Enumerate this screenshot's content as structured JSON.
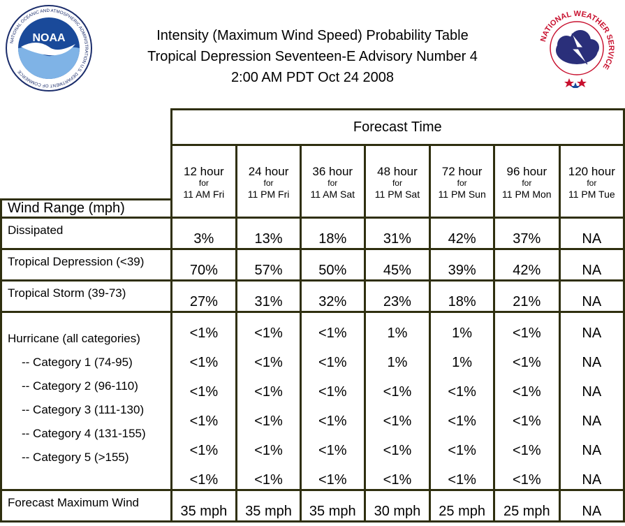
{
  "header": {
    "title_line1": "Intensity (Maximum Wind Speed) Probability Table",
    "title_line2": "Tropical Depression Seventeen-E Advisory Number 4",
    "title_line3": "2:00 AM PDT Oct 24 2008",
    "noaa_logo_text": "NOAA",
    "noaa_ring_text": "NATIONAL OCEANIC AND ATMOSPHERIC ADMINISTRATION U.S. DEPARTMENT OF COMMERCE",
    "nws_ring_text": "NATIONAL WEATHER SERVICE"
  },
  "table": {
    "forecast_time_label": "Forecast Time",
    "wind_range_label": "Wind Range (mph)",
    "columns": [
      {
        "hour": "12 hour",
        "for": "for",
        "when": "11 AM Fri"
      },
      {
        "hour": "24 hour",
        "for": "for",
        "when": "11 PM Fri"
      },
      {
        "hour": "36 hour",
        "for": "for",
        "when": "11 AM Sat"
      },
      {
        "hour": "48 hour",
        "for": "for",
        "when": "11 PM Sat"
      },
      {
        "hour": "72 hour",
        "for": "for",
        "when": "11 PM Sun"
      },
      {
        "hour": "96 hour",
        "for": "for",
        "when": "11 PM Mon"
      },
      {
        "hour": "120 hour",
        "for": "for",
        "when": "11 PM Tue"
      }
    ],
    "rows": [
      {
        "label": "Dissipated",
        "values": [
          "3%",
          "13%",
          "18%",
          "31%",
          "42%",
          "37%",
          "NA"
        ]
      },
      {
        "label": "Tropical Depression (<39)",
        "values": [
          "70%",
          "57%",
          "50%",
          "45%",
          "39%",
          "42%",
          "NA"
        ]
      },
      {
        "label": "Tropical Storm (39-73)",
        "values": [
          "27%",
          "31%",
          "32%",
          "23%",
          "18%",
          "21%",
          "NA"
        ]
      }
    ],
    "hurricane_group": [
      {
        "label": "Hurricane (all categories)",
        "values": [
          "<1%",
          "<1%",
          "<1%",
          "1%",
          "1%",
          "<1%",
          "NA"
        ]
      },
      {
        "label": "-- Category 1 (74-95)",
        "values": [
          "<1%",
          "<1%",
          "<1%",
          "1%",
          "1%",
          "<1%",
          "NA"
        ]
      },
      {
        "label": "-- Category 2 (96-110)",
        "values": [
          "<1%",
          "<1%",
          "<1%",
          "<1%",
          "<1%",
          "<1%",
          "NA"
        ]
      },
      {
        "label": "-- Category 3 (111-130)",
        "values": [
          "<1%",
          "<1%",
          "<1%",
          "<1%",
          "<1%",
          "<1%",
          "NA"
        ]
      },
      {
        "label": "-- Category 4 (131-155)",
        "values": [
          "<1%",
          "<1%",
          "<1%",
          "<1%",
          "<1%",
          "<1%",
          "NA"
        ]
      },
      {
        "label": "-- Category 5 (>155)",
        "values": [
          "<1%",
          "<1%",
          "<1%",
          "<1%",
          "<1%",
          "<1%",
          "NA"
        ]
      }
    ],
    "max_wind": {
      "label": "Forecast Maximum Wind",
      "values": [
        "35 mph",
        "35 mph",
        "35 mph",
        "30 mph",
        "25 mph",
        "25 mph",
        "NA"
      ]
    }
  },
  "colors": {
    "border": "#2f2f0f",
    "noaa_blue": "#1f3f8f",
    "nws_red": "#c8102e"
  }
}
